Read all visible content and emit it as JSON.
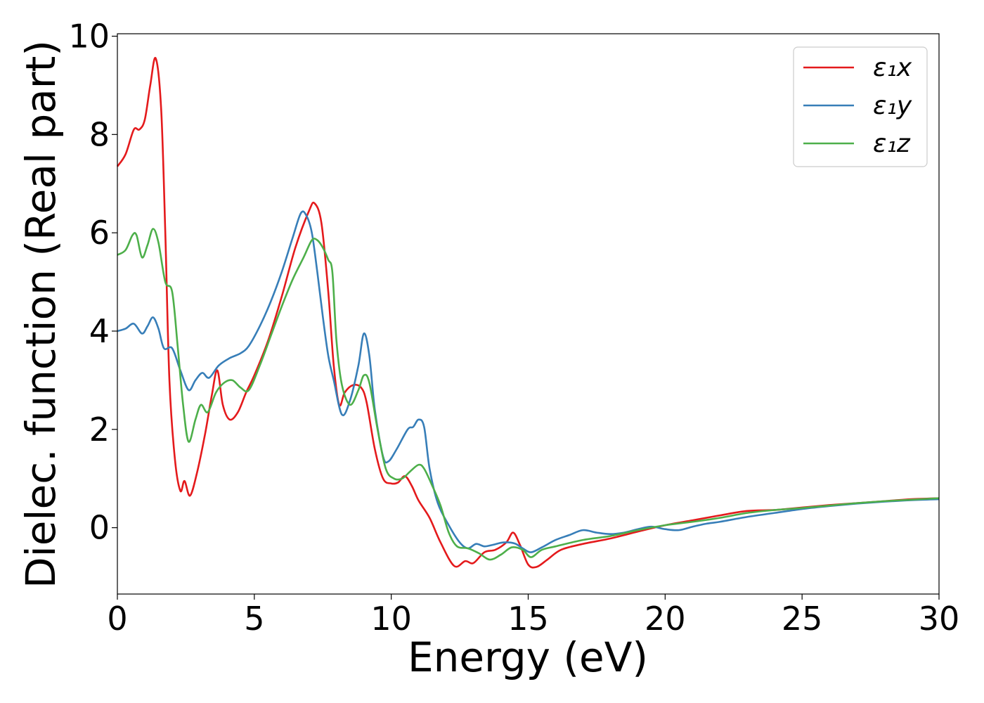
{
  "chart_data": {
    "type": "line",
    "title": "",
    "xlabel": "Energy (eV)",
    "ylabel": "Dielec. function (Real part)",
    "xlim": [
      0,
      30
    ],
    "ylim": [
      -1.35,
      10.05
    ],
    "xticks": [
      0,
      5,
      10,
      15,
      20,
      25,
      30
    ],
    "yticks": [
      0,
      2,
      4,
      6,
      8,
      10
    ],
    "grid": false,
    "legend_position": "top-right",
    "series": [
      {
        "name": "ε₁x",
        "color": "#e41a1c",
        "points": [
          [
            0,
            7.35
          ],
          [
            0.3,
            7.6
          ],
          [
            0.6,
            8.1
          ],
          [
            0.8,
            8.1
          ],
          [
            1.0,
            8.3
          ],
          [
            1.2,
            9.0
          ],
          [
            1.4,
            9.55
          ],
          [
            1.6,
            8.5
          ],
          [
            1.75,
            6.0
          ],
          [
            1.9,
            3.0
          ],
          [
            2.1,
            1.4
          ],
          [
            2.3,
            0.75
          ],
          [
            2.45,
            0.95
          ],
          [
            2.65,
            0.65
          ],
          [
            2.9,
            1.1
          ],
          [
            3.2,
            1.9
          ],
          [
            3.45,
            2.7
          ],
          [
            3.65,
            3.2
          ],
          [
            3.85,
            2.5
          ],
          [
            4.1,
            2.2
          ],
          [
            4.4,
            2.35
          ],
          [
            4.7,
            2.75
          ],
          [
            5.0,
            3.1
          ],
          [
            5.5,
            3.8
          ],
          [
            6.0,
            4.7
          ],
          [
            6.5,
            5.7
          ],
          [
            7.0,
            6.45
          ],
          [
            7.2,
            6.6
          ],
          [
            7.45,
            6.2
          ],
          [
            7.7,
            4.8
          ],
          [
            7.9,
            3.3
          ],
          [
            8.1,
            2.5
          ],
          [
            8.3,
            2.75
          ],
          [
            8.6,
            2.9
          ],
          [
            8.9,
            2.85
          ],
          [
            9.1,
            2.55
          ],
          [
            9.4,
            1.6
          ],
          [
            9.7,
            1.0
          ],
          [
            10.0,
            0.9
          ],
          [
            10.25,
            0.92
          ],
          [
            10.5,
            1.05
          ],
          [
            10.75,
            0.85
          ],
          [
            11.0,
            0.55
          ],
          [
            11.4,
            0.2
          ],
          [
            11.8,
            -0.3
          ],
          [
            12.3,
            -0.78
          ],
          [
            12.7,
            -0.68
          ],
          [
            13.0,
            -0.72
          ],
          [
            13.4,
            -0.5
          ],
          [
            13.8,
            -0.45
          ],
          [
            14.2,
            -0.3
          ],
          [
            14.45,
            -0.1
          ],
          [
            14.7,
            -0.35
          ],
          [
            15.0,
            -0.75
          ],
          [
            15.3,
            -0.8
          ],
          [
            15.7,
            -0.65
          ],
          [
            16.2,
            -0.45
          ],
          [
            17.0,
            -0.33
          ],
          [
            18.0,
            -0.22
          ],
          [
            19.0,
            -0.08
          ],
          [
            20.0,
            0.05
          ],
          [
            21.0,
            0.15
          ],
          [
            22.0,
            0.25
          ],
          [
            23.0,
            0.34
          ],
          [
            24.0,
            0.36
          ],
          [
            25.0,
            0.41
          ],
          [
            26.0,
            0.46
          ],
          [
            27.0,
            0.5
          ],
          [
            28.0,
            0.54
          ],
          [
            29.0,
            0.58
          ],
          [
            30.0,
            0.6
          ]
        ]
      },
      {
        "name": "ε₁y",
        "color": "#377eb8",
        "points": [
          [
            0,
            4.0
          ],
          [
            0.3,
            4.05
          ],
          [
            0.6,
            4.15
          ],
          [
            0.9,
            3.95
          ],
          [
            1.1,
            4.1
          ],
          [
            1.3,
            4.28
          ],
          [
            1.5,
            4.05
          ],
          [
            1.7,
            3.65
          ],
          [
            2.0,
            3.65
          ],
          [
            2.3,
            3.2
          ],
          [
            2.6,
            2.8
          ],
          [
            2.85,
            3.0
          ],
          [
            3.1,
            3.15
          ],
          [
            3.35,
            3.05
          ],
          [
            3.7,
            3.3
          ],
          [
            4.1,
            3.45
          ],
          [
            4.5,
            3.55
          ],
          [
            4.8,
            3.7
          ],
          [
            5.2,
            4.1
          ],
          [
            5.6,
            4.6
          ],
          [
            6.0,
            5.2
          ],
          [
            6.4,
            5.9
          ],
          [
            6.7,
            6.4
          ],
          [
            6.9,
            6.35
          ],
          [
            7.1,
            6.0
          ],
          [
            7.3,
            5.2
          ],
          [
            7.5,
            4.3
          ],
          [
            7.7,
            3.5
          ],
          [
            7.9,
            3.0
          ],
          [
            8.2,
            2.3
          ],
          [
            8.5,
            2.6
          ],
          [
            8.8,
            3.3
          ],
          [
            9.0,
            3.95
          ],
          [
            9.2,
            3.5
          ],
          [
            9.4,
            2.4
          ],
          [
            9.7,
            1.45
          ],
          [
            9.9,
            1.35
          ],
          [
            10.2,
            1.6
          ],
          [
            10.6,
            2.0
          ],
          [
            10.8,
            2.05
          ],
          [
            11.0,
            2.2
          ],
          [
            11.2,
            2.05
          ],
          [
            11.4,
            1.2
          ],
          [
            11.7,
            0.5
          ],
          [
            12.1,
            0.05
          ],
          [
            12.5,
            -0.3
          ],
          [
            12.8,
            -0.42
          ],
          [
            13.1,
            -0.33
          ],
          [
            13.4,
            -0.38
          ],
          [
            13.7,
            -0.35
          ],
          [
            14.1,
            -0.3
          ],
          [
            14.5,
            -0.32
          ],
          [
            14.8,
            -0.42
          ],
          [
            15.1,
            -0.5
          ],
          [
            15.5,
            -0.4
          ],
          [
            16.0,
            -0.25
          ],
          [
            16.5,
            -0.15
          ],
          [
            17.0,
            -0.05
          ],
          [
            17.5,
            -0.1
          ],
          [
            18.0,
            -0.13
          ],
          [
            18.5,
            -0.1
          ],
          [
            19.0,
            -0.03
          ],
          [
            19.5,
            0.02
          ],
          [
            20.0,
            -0.03
          ],
          [
            20.5,
            -0.05
          ],
          [
            21.0,
            0.02
          ],
          [
            21.5,
            0.08
          ],
          [
            22.0,
            0.12
          ],
          [
            23.0,
            0.22
          ],
          [
            24.0,
            0.3
          ],
          [
            25.0,
            0.38
          ],
          [
            26.0,
            0.44
          ],
          [
            27.0,
            0.49
          ],
          [
            28.0,
            0.53
          ],
          [
            29.0,
            0.56
          ],
          [
            30.0,
            0.58
          ]
        ]
      },
      {
        "name": "ε₁z",
        "color": "#4daf4a",
        "points": [
          [
            0,
            5.55
          ],
          [
            0.3,
            5.65
          ],
          [
            0.55,
            5.95
          ],
          [
            0.7,
            5.95
          ],
          [
            0.9,
            5.5
          ],
          [
            1.1,
            5.75
          ],
          [
            1.3,
            6.08
          ],
          [
            1.5,
            5.8
          ],
          [
            1.75,
            5.0
          ],
          [
            2.0,
            4.8
          ],
          [
            2.2,
            3.7
          ],
          [
            2.4,
            2.5
          ],
          [
            2.6,
            1.75
          ],
          [
            2.85,
            2.2
          ],
          [
            3.05,
            2.5
          ],
          [
            3.3,
            2.35
          ],
          [
            3.6,
            2.75
          ],
          [
            3.9,
            2.95
          ],
          [
            4.2,
            3.0
          ],
          [
            4.5,
            2.85
          ],
          [
            4.8,
            2.8
          ],
          [
            5.2,
            3.3
          ],
          [
            5.6,
            3.9
          ],
          [
            6.0,
            4.5
          ],
          [
            6.4,
            5.05
          ],
          [
            6.8,
            5.5
          ],
          [
            7.1,
            5.85
          ],
          [
            7.3,
            5.85
          ],
          [
            7.5,
            5.7
          ],
          [
            7.7,
            5.45
          ],
          [
            7.85,
            5.2
          ],
          [
            8.0,
            3.8
          ],
          [
            8.2,
            2.9
          ],
          [
            8.5,
            2.5
          ],
          [
            8.8,
            2.8
          ],
          [
            9.0,
            3.1
          ],
          [
            9.2,
            2.95
          ],
          [
            9.5,
            2.0
          ],
          [
            9.8,
            1.2
          ],
          [
            10.1,
            1.0
          ],
          [
            10.4,
            1.0
          ],
          [
            10.7,
            1.15
          ],
          [
            11.0,
            1.28
          ],
          [
            11.2,
            1.2
          ],
          [
            11.5,
            0.85
          ],
          [
            11.8,
            0.45
          ],
          [
            12.1,
            -0.1
          ],
          [
            12.4,
            -0.38
          ],
          [
            12.8,
            -0.42
          ],
          [
            13.2,
            -0.52
          ],
          [
            13.6,
            -0.65
          ],
          [
            14.0,
            -0.55
          ],
          [
            14.4,
            -0.4
          ],
          [
            14.8,
            -0.45
          ],
          [
            15.1,
            -0.6
          ],
          [
            15.5,
            -0.45
          ],
          [
            16.0,
            -0.38
          ],
          [
            17.0,
            -0.25
          ],
          [
            18.0,
            -0.17
          ],
          [
            19.0,
            -0.05
          ],
          [
            20.0,
            0.05
          ],
          [
            21.0,
            0.12
          ],
          [
            22.0,
            0.2
          ],
          [
            23.0,
            0.3
          ],
          [
            24.0,
            0.36
          ],
          [
            25.0,
            0.4
          ],
          [
            26.0,
            0.45
          ],
          [
            27.0,
            0.5
          ],
          [
            28.0,
            0.54
          ],
          [
            29.0,
            0.57
          ],
          [
            30.0,
            0.6
          ]
        ]
      }
    ]
  }
}
